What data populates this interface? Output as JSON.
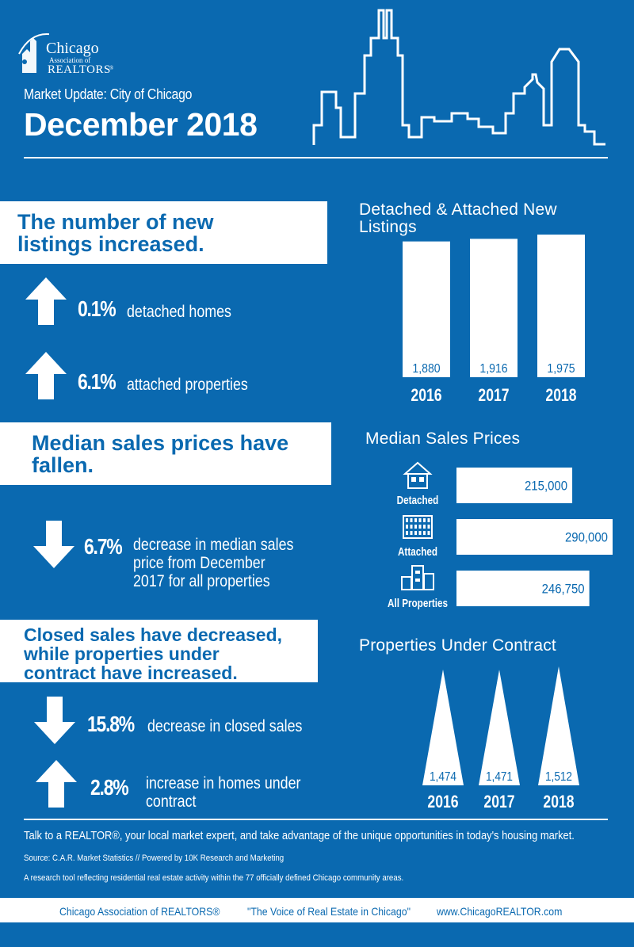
{
  "logo": {
    "line1": "Chicago",
    "line2": "Association of",
    "line3": "REALTORS",
    "reg": "®"
  },
  "header": {
    "subtitle": "Market Update: City of Chicago",
    "title": "December 2018"
  },
  "section_listings": {
    "headline_1": "The number of new",
    "headline_2": "listings increased.",
    "stats": [
      {
        "direction": "up",
        "value": "0.1%",
        "label": "detached homes"
      },
      {
        "direction": "up",
        "value": "6.1%",
        "label": "attached properties"
      }
    ]
  },
  "section_prices": {
    "headline_1": "Median sales prices have",
    "headline_2": "fallen.",
    "stat": {
      "direction": "down",
      "value": "6.7%",
      "line1": "decrease in median sales",
      "line2": "price from December",
      "line3": "2017 for all properties"
    }
  },
  "section_sales": {
    "headline_1": "Closed sales have decreased,",
    "headline_2": "while properties under",
    "headline_3": "contract have increased.",
    "stats": [
      {
        "direction": "down",
        "value": "15.8%",
        "line1": "decrease in closed sales",
        "line2": ""
      },
      {
        "direction": "up",
        "value": "2.8%",
        "line1": "increase in homes under",
        "line2": "contract"
      }
    ]
  },
  "chart_data": [
    {
      "type": "bar",
      "title_line1": "Detached & Attached New",
      "title_line2": "Listings",
      "categories": [
        "2016",
        "2017",
        "2018"
      ],
      "values": [
        1880,
        1916,
        1975
      ],
      "value_labels": [
        "1,880",
        "1,916",
        "1,975"
      ],
      "ylim": [
        0,
        1975
      ]
    },
    {
      "type": "bar",
      "orientation": "horizontal",
      "title": "Median Sales Prices",
      "categories": [
        "Detached",
        "Attached",
        "All Properties"
      ],
      "icons": [
        "house-icon",
        "apartment-icon",
        "buildings-icon"
      ],
      "values": [
        215000,
        290000,
        246750
      ],
      "value_labels": [
        "215,000",
        "290,000",
        "246,750"
      ],
      "xlim": [
        0,
        290000
      ]
    },
    {
      "type": "bar",
      "shape": "triangle",
      "title": "Properties Under Contract",
      "categories": [
        "2016",
        "2017",
        "2018"
      ],
      "values": [
        1474,
        1471,
        1512
      ],
      "value_labels": [
        "1,474",
        "1,471",
        "1,512"
      ],
      "ylim": [
        0,
        1512
      ]
    }
  ],
  "footer": {
    "cta": "Talk to a REALTOR®, your local market expert, and take advantage of the unique opportunities in today's housing market.",
    "source": "Source: C.A.R. Market Statistics // Powered by 10K Research and Marketing",
    "note": "A research tool reflecting residential real estate activity within the 77 officially defined Chicago community areas.",
    "org": "Chicago Association of REALTORS®",
    "tagline": "\"The Voice of Real Estate in Chicago\"",
    "url": "www.ChicagoREALTOR.com"
  },
  "colors": {
    "background": "#0a69b0",
    "foreground": "#ffffff"
  }
}
